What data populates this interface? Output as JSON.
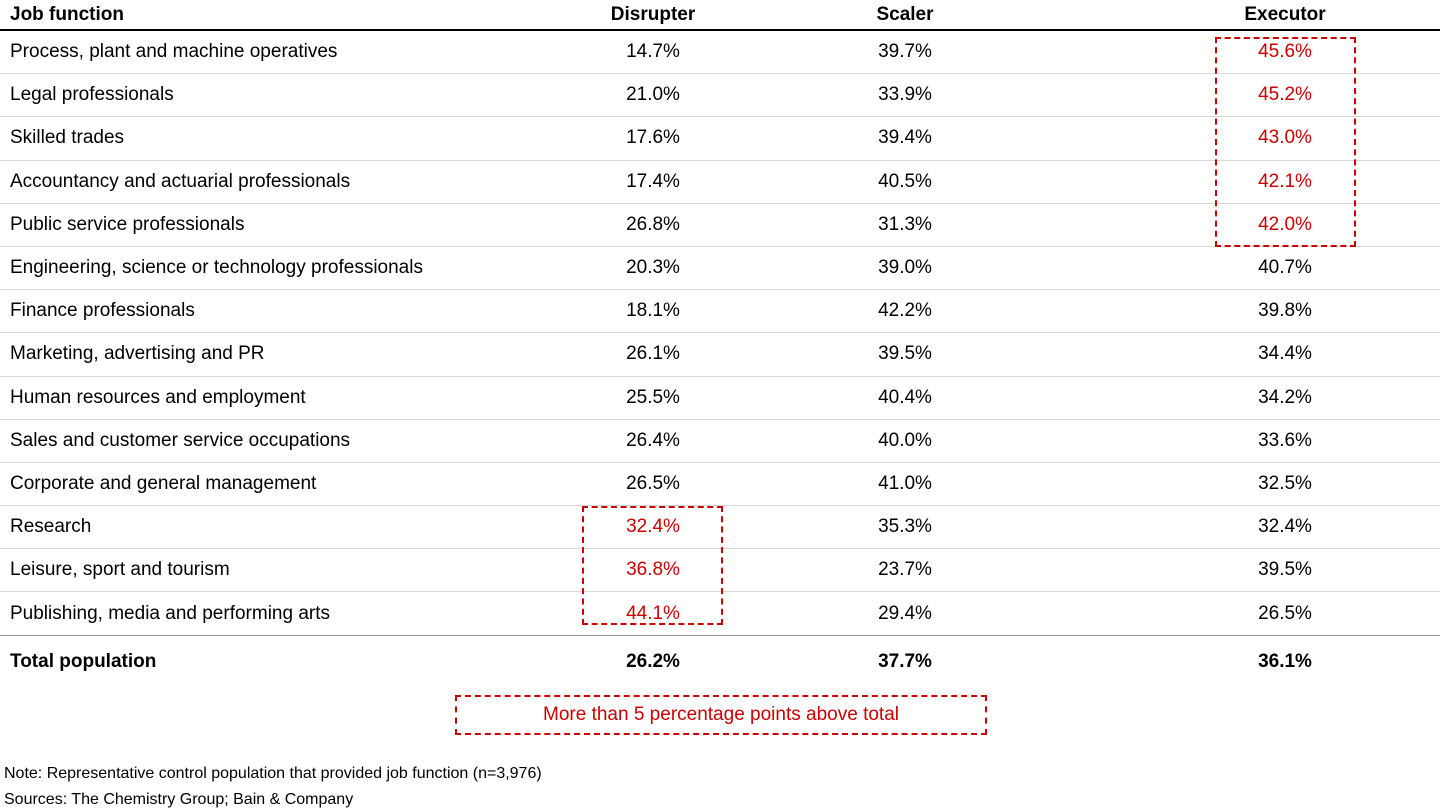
{
  "colors": {
    "highlight_red": "#cc0000",
    "row_divider": "#d9d9d9",
    "total_divider": "#999999",
    "header_divider": "#000000"
  },
  "chart_data": {
    "type": "table",
    "columns": [
      "Job function",
      "Disrupter",
      "Scaler",
      "Executor"
    ],
    "rows": [
      {
        "job_function": "Process, plant and machine operatives",
        "disrupter": "14.7%",
        "scaler": "39.7%",
        "executor": "45.6%",
        "disrupter_highlighted": false,
        "executor_highlighted": true
      },
      {
        "job_function": "Legal professionals",
        "disrupter": "21.0%",
        "scaler": "33.9%",
        "executor": "45.2%",
        "disrupter_highlighted": false,
        "executor_highlighted": true
      },
      {
        "job_function": "Skilled trades",
        "disrupter": "17.6%",
        "scaler": "39.4%",
        "executor": "43.0%",
        "disrupter_highlighted": false,
        "executor_highlighted": true
      },
      {
        "job_function": "Accountancy and actuarial professionals",
        "disrupter": "17.4%",
        "scaler": "40.5%",
        "executor": "42.1%",
        "disrupter_highlighted": false,
        "executor_highlighted": true
      },
      {
        "job_function": "Public service professionals",
        "disrupter": "26.8%",
        "scaler": "31.3%",
        "executor": "42.0%",
        "disrupter_highlighted": false,
        "executor_highlighted": true
      },
      {
        "job_function": "Engineering, science or technology professionals",
        "disrupter": "20.3%",
        "scaler": "39.0%",
        "executor": "40.7%",
        "disrupter_highlighted": false,
        "executor_highlighted": false
      },
      {
        "job_function": "Finance professionals",
        "disrupter": "18.1%",
        "scaler": "42.2%",
        "executor": "39.8%",
        "disrupter_highlighted": false,
        "executor_highlighted": false
      },
      {
        "job_function": "Marketing, advertising and PR",
        "disrupter": "26.1%",
        "scaler": "39.5%",
        "executor": "34.4%",
        "disrupter_highlighted": false,
        "executor_highlighted": false
      },
      {
        "job_function": "Human resources and employment",
        "disrupter": "25.5%",
        "scaler": "40.4%",
        "executor": "34.2%",
        "disrupter_highlighted": false,
        "executor_highlighted": false
      },
      {
        "job_function": "Sales and customer service occupations",
        "disrupter": "26.4%",
        "scaler": "40.0%",
        "executor": "33.6%",
        "disrupter_highlighted": false,
        "executor_highlighted": false
      },
      {
        "job_function": "Corporate and general management",
        "disrupter": "26.5%",
        "scaler": "41.0%",
        "executor": "32.5%",
        "disrupter_highlighted": false,
        "executor_highlighted": false
      },
      {
        "job_function": "Research",
        "disrupter": "32.4%",
        "scaler": "35.3%",
        "executor": "32.4%",
        "disrupter_highlighted": true,
        "executor_highlighted": false
      },
      {
        "job_function": "Leisure, sport and tourism",
        "disrupter": "36.8%",
        "scaler": "23.7%",
        "executor": "39.5%",
        "disrupter_highlighted": true,
        "executor_highlighted": false
      },
      {
        "job_function": "Publishing, media and performing arts",
        "disrupter": "44.1%",
        "scaler": "29.4%",
        "executor": "26.5%",
        "disrupter_highlighted": true,
        "executor_highlighted": false
      }
    ],
    "total": {
      "job_function": "Total population",
      "disrupter": "26.2%",
      "scaler": "37.7%",
      "executor": "36.1%"
    },
    "layout_hints": {
      "highlighted_disrupter_rows": [
        11,
        12,
        13
      ],
      "highlighted_executor_rows": [
        0,
        1,
        2,
        3,
        4
      ]
    }
  },
  "legend": {
    "label": "More than 5 percentage points above total"
  },
  "footnotes": {
    "note": "Note: Representative control population that provided job function (n=3,976)",
    "sources": "Sources: The Chemistry Group; Bain & Company"
  }
}
